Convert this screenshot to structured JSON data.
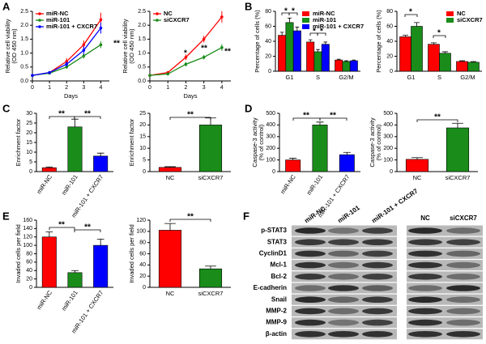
{
  "chart_data": [
    {
      "panel": "A",
      "type": "line",
      "xlabel": "Days",
      "ylabel": [
        "Relative cell viability",
        "(OD 450 nm)"
      ],
      "x": [
        0,
        1,
        2,
        3,
        4
      ],
      "xlim": [
        0,
        4.5
      ],
      "xticks": [
        0,
        1,
        2,
        3,
        4
      ],
      "ylim": [
        0,
        2.5
      ],
      "yticks": [
        {
          "value": 0,
          "label": "0.0"
        },
        0.5,
        {
          "value": 1,
          "label": "1.0"
        },
        1.5,
        {
          "value": 2,
          "label": "2.0"
        },
        2.5
      ],
      "legend": "upper left",
      "series": [
        {
          "name": "miR-NC",
          "color": "#ff0000",
          "values": [
            0.2,
            0.3,
            0.7,
            1.3,
            2.2
          ],
          "errors": [
            0.02,
            0.05,
            0.12,
            0.15,
            0.25
          ]
        },
        {
          "name": "miR-101",
          "color": "#1a8c1a",
          "values": [
            0.2,
            0.28,
            0.5,
            0.9,
            1.3
          ],
          "errors": [
            0.02,
            0.03,
            0.06,
            0.1,
            0.12
          ]
        },
        {
          "name": "miR-101 + CXCR7",
          "color": "#0000ff",
          "values": [
            0.2,
            0.3,
            0.6,
            1.1,
            1.9
          ],
          "errors": [
            0.02,
            0.05,
            0.1,
            0.15,
            0.2
          ]
        }
      ],
      "annotations": [
        "**"
      ]
    },
    {
      "type": "line",
      "xlabel": "Days",
      "ylabel": [
        "Relative cell viability",
        "(OD 450 nm)"
      ],
      "x": [
        0,
        1,
        2,
        3,
        4
      ],
      "xlim": [
        0,
        4.5
      ],
      "xticks": [
        0,
        1,
        2,
        3,
        4
      ],
      "ylim": [
        0,
        2.5
      ],
      "yticks": [
        {
          "value": 0,
          "label": "0.0"
        },
        0.5,
        {
          "value": 1,
          "label": "1.0"
        },
        1.5,
        {
          "value": 2,
          "label": "2.0"
        },
        2.5
      ],
      "legend": "upper left",
      "series": [
        {
          "name": "NC",
          "color": "#ff0000",
          "values": [
            0.2,
            0.3,
            0.85,
            1.5,
            2.3
          ],
          "errors": [
            0.02,
            0.05,
            0.1,
            0.12,
            0.2
          ]
        },
        {
          "name": "siCXCR7",
          "color": "#1a8c1a",
          "values": [
            0.2,
            0.25,
            0.6,
            0.85,
            1.2
          ],
          "errors": [
            0.02,
            0.03,
            0.08,
            0.08,
            0.12
          ]
        }
      ],
      "annotations": [
        "*",
        "**",
        "**"
      ]
    },
    {
      "panel": "B",
      "type": "bar",
      "ylabel": [
        "Percentage of cells (%)"
      ],
      "categories": [
        "G1",
        "S",
        "G2/M"
      ],
      "ylim": [
        0,
        80
      ],
      "yticks": [
        0,
        20,
        40,
        60,
        80
      ],
      "legend": "upper right",
      "series": [
        {
          "name": "miR-NC",
          "color": "#ff0000",
          "values": [
            48,
            39,
            15
          ],
          "errors": [
            4,
            3,
            1
          ]
        },
        {
          "name": "miR-101",
          "color": "#1a8c1a",
          "values": [
            65,
            26,
            13
          ],
          "errors": [
            6,
            3,
            1
          ]
        },
        {
          "name": "miR-101 + CXCR7",
          "color": "#0000ff",
          "values": [
            54,
            36,
            14
          ],
          "errors": [
            5,
            3,
            1
          ]
        }
      ],
      "annotations": [
        "*",
        "*",
        "*",
        "*"
      ]
    },
    {
      "type": "bar",
      "ylabel": [
        "Percentage of cells (%)"
      ],
      "categories": [
        "G1",
        "S",
        "G2/M"
      ],
      "ylim": [
        0,
        80
      ],
      "yticks": [
        0,
        20,
        40,
        60,
        80
      ],
      "legend": "upper right",
      "series": [
        {
          "name": "NC",
          "color": "#ff0000",
          "values": [
            46,
            36,
            13
          ],
          "errors": [
            2,
            2,
            1
          ]
        },
        {
          "name": "siCXCR7",
          "color": "#1a8c1a",
          "values": [
            60,
            24,
            12
          ],
          "errors": [
            5,
            2,
            1
          ]
        }
      ],
      "annotations": [
        "*",
        "*"
      ]
    },
    {
      "panel": "C",
      "type": "bar",
      "ylabel": [
        "Enrichment factor"
      ],
      "categories": [
        "miR-NC",
        "miR-101",
        "miR-101 + CXCR7"
      ],
      "values": [
        2,
        23,
        8
      ],
      "errors": [
        0.4,
        4,
        1.5
      ],
      "colors": [
        "#ff0000",
        "#1a8c1a",
        "#0000ff"
      ],
      "ylim": [
        0,
        30
      ],
      "yticks": [
        0,
        5,
        10,
        15,
        20,
        25,
        30
      ],
      "annotations": [
        "**",
        "**"
      ]
    },
    {
      "type": "bar",
      "ylabel": [
        "Enrichment factor"
      ],
      "categories": [
        "NC",
        "siCXCR7"
      ],
      "values": [
        1.8,
        20
      ],
      "errors": [
        0.3,
        3
      ],
      "colors": [
        "#ff0000",
        "#1a8c1a"
      ],
      "ylim": [
        0,
        25
      ],
      "yticks": [
        0,
        5,
        10,
        15,
        20,
        25
      ],
      "annotations": [
        "**"
      ]
    },
    {
      "panel": "D",
      "type": "bar",
      "ylabel": [
        "Caspase-3 activity",
        "(% of control)"
      ],
      "categories": [
        "miR-NC",
        "miR-101",
        "miR-101 + CXCR7"
      ],
      "values": [
        100,
        400,
        145
      ],
      "errors": [
        15,
        25,
        20
      ],
      "colors": [
        "#ff0000",
        "#1a8c1a",
        "#0000ff"
      ],
      "ylim": [
        0,
        500
      ],
      "yticks": [
        0,
        100,
        200,
        300,
        400,
        500
      ],
      "annotations": [
        "**",
        "**"
      ]
    },
    {
      "type": "bar",
      "ylabel": [
        "Caspase-3 activity",
        "(% of control)"
      ],
      "categories": [
        "NC",
        "siCXCR7"
      ],
      "values": [
        105,
        375
      ],
      "errors": [
        15,
        40
      ],
      "colors": [
        "#ff0000",
        "#1a8c1a"
      ],
      "ylim": [
        0,
        500
      ],
      "yticks": [
        0,
        100,
        200,
        300,
        400,
        500
      ],
      "annotations": [
        "**"
      ]
    },
    {
      "panel": "E",
      "type": "bar",
      "ylabel": [
        "Invaded cells per field"
      ],
      "categories": [
        "miR-NC",
        "miR-101",
        "miR-101 + CXCR7"
      ],
      "values": [
        120,
        35,
        100
      ],
      "errors": [
        12,
        5,
        15
      ],
      "colors": [
        "#ff0000",
        "#1a8c1a",
        "#0000ff"
      ],
      "ylim": [
        0,
        160
      ],
      "yticks": [
        0,
        20,
        40,
        60,
        80,
        100,
        120,
        140,
        160
      ],
      "annotations": [
        "**",
        "**"
      ]
    },
    {
      "type": "bar",
      "ylabel": [
        "Invaded cells per field"
      ],
      "categories": [
        "NC",
        "siCXCR7"
      ],
      "values": [
        102,
        33
      ],
      "errors": [
        12,
        5
      ],
      "colors": [
        "#ff0000",
        "#1a8c1a"
      ],
      "ylim": [
        0,
        120
      ],
      "yticks": [
        0,
        20,
        40,
        60,
        80,
        100,
        120
      ],
      "annotations": [
        "**"
      ]
    }
  ],
  "blot": {
    "panel": "F",
    "rows": [
      "p-STAT3",
      "STAT3",
      "CyclinD1",
      "Mcl-1",
      "Bcl-2",
      "E-cadherin",
      "Snail",
      "MMP-2",
      "MMP-9",
      "β-actin"
    ],
    "lanes_left": [
      "miR-NC",
      "miR-101",
      "miR-101 + CXCR7"
    ],
    "lanes_right": [
      "NC",
      "siCXCR7"
    ]
  }
}
